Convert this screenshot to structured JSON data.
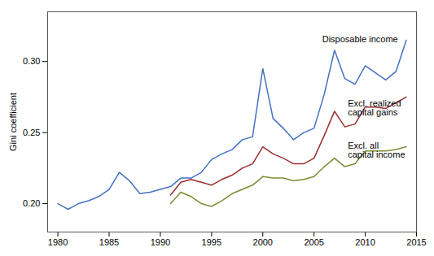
{
  "chart_data": {
    "type": "line",
    "ylabel": "Gini coefficient",
    "x": [
      1980,
      1981,
      1982,
      1983,
      1984,
      1985,
      1986,
      1987,
      1988,
      1989,
      1990,
      1991,
      1992,
      1993,
      1994,
      1995,
      1996,
      1997,
      1998,
      1999,
      2000,
      2001,
      2002,
      2003,
      2004,
      2005,
      2006,
      2007,
      2008,
      2009,
      2010,
      2011,
      2012,
      2013,
      2014
    ],
    "series": [
      {
        "name": "Disposable income",
        "color": "#4472C4",
        "values": [
          0.2,
          0.196,
          0.2,
          0.202,
          0.205,
          0.21,
          0.222,
          0.216,
          0.207,
          0.208,
          0.21,
          0.212,
          0.218,
          0.218,
          0.222,
          0.231,
          0.235,
          0.238,
          0.245,
          0.247,
          0.295,
          0.26,
          0.253,
          0.245,
          0.25,
          0.253,
          0.277,
          0.308,
          0.288,
          0.284,
          0.297,
          0.292,
          0.287,
          0.293,
          0.315
        ]
      },
      {
        "name": "Excl. realized\ncapital gains",
        "color": "#9B2D30",
        "values": [
          null,
          null,
          null,
          null,
          null,
          null,
          null,
          null,
          null,
          null,
          null,
          0.206,
          0.215,
          0.217,
          0.215,
          0.213,
          0.217,
          0.22,
          0.225,
          0.228,
          0.24,
          0.235,
          0.232,
          0.228,
          0.228,
          0.232,
          0.248,
          0.265,
          0.254,
          0.256,
          0.268,
          0.268,
          0.267,
          0.271,
          0.275
        ]
      },
      {
        "name": "Excl. all\ncapital income",
        "color": "#7B8C35",
        "values": [
          null,
          null,
          null,
          null,
          null,
          null,
          null,
          null,
          null,
          null,
          null,
          0.2,
          0.208,
          0.205,
          0.2,
          0.198,
          0.202,
          0.207,
          0.21,
          0.213,
          0.219,
          0.218,
          0.218,
          0.216,
          0.217,
          0.219,
          0.226,
          0.232,
          0.226,
          0.228,
          0.237,
          0.237,
          0.237,
          0.238,
          0.24
        ]
      }
    ],
    "annotations": [
      {
        "text": "Disposable income",
        "x": 2005.8,
        "y": 0.318
      },
      {
        "text": "Excl. realized\ncapital gains",
        "x": 2008.3,
        "y": 0.273
      },
      {
        "text": "Excl. all\ncapital income",
        "x": 2008.3,
        "y": 0.243
      }
    ],
    "xlim": [
      1979,
      2015
    ],
    "ylim": [
      0.18,
      0.335
    ],
    "xticks": [
      1980,
      1985,
      1990,
      1995,
      2000,
      2005,
      2010,
      2015
    ],
    "yticks": [
      {
        "value": 0.2,
        "label": "0.20"
      },
      0.25,
      {
        "value": 0.3,
        "label": "0.30"
      }
    ],
    "grid": false,
    "legend": false
  }
}
